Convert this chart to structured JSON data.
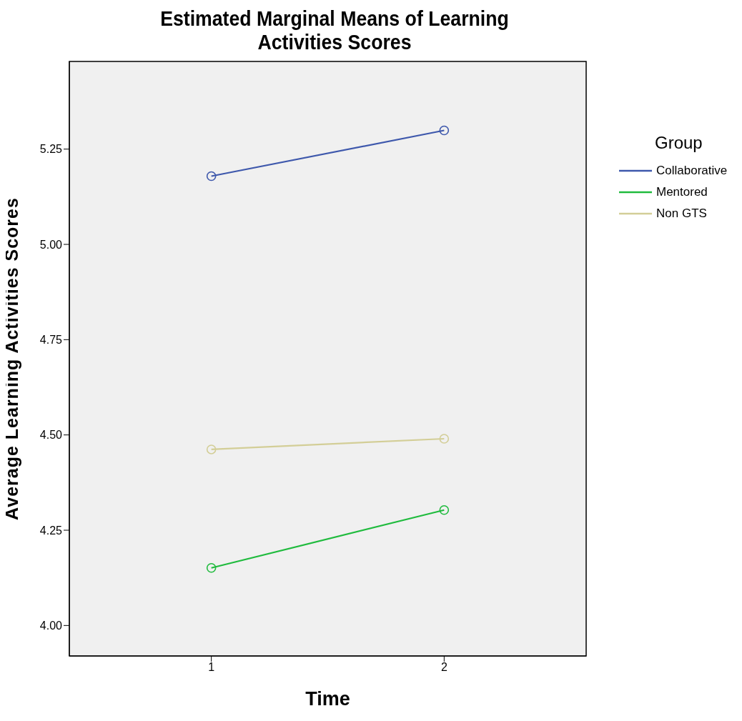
{
  "chart_data": {
    "type": "line",
    "title": "Estimated Marginal Means of Learning Activities Scores",
    "xlabel": "Time",
    "ylabel": "Average Learning Activities Scores",
    "legend_title": "Group",
    "x": [
      1,
      2
    ],
    "series": [
      {
        "name": "Collaborative",
        "color": "#3e58ac",
        "values": [
          5.179,
          5.299
        ]
      },
      {
        "name": "Mentored",
        "color": "#20bb3e",
        "values": [
          4.151,
          4.303
        ]
      },
      {
        "name": "Non GTS",
        "color": "#d3ce97",
        "values": [
          4.462,
          4.49
        ]
      }
    ],
    "xlim": [
      0.39,
      2.61
    ],
    "xticks": [
      1,
      2
    ],
    "ylim": [
      3.92,
      5.48
    ],
    "yticks": [
      {
        "value": 4,
        "label": "4.00"
      },
      {
        "value": 4.25,
        "label": "4.25"
      },
      {
        "value": 4.5,
        "label": "4.50"
      },
      {
        "value": 4.75,
        "label": "4.75"
      },
      {
        "value": 5,
        "label": "5.00"
      },
      {
        "value": 5.25,
        "label": "5.25"
      }
    ],
    "grid": false,
    "legend": "right",
    "marker": "circle",
    "line_style": "solid"
  }
}
